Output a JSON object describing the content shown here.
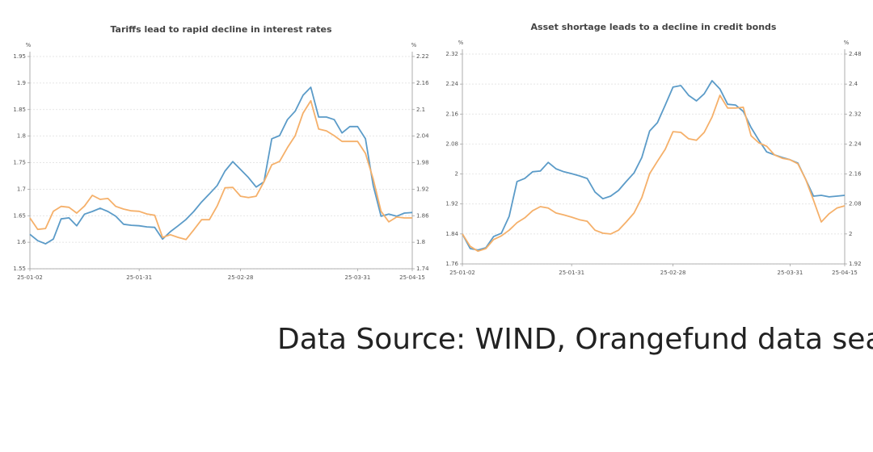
{
  "chart_data": [
    {
      "type": "line",
      "title": "Tariffs lead to rapid decline in interest rates",
      "ylabel": "%",
      "y2label": "%",
      "categories": [
        "25-01-02",
        null,
        null,
        null,
        null,
        null,
        null,
        null,
        null,
        null,
        null,
        null,
        null,
        null,
        "25-01-31",
        null,
        null,
        null,
        null,
        null,
        null,
        null,
        null,
        null,
        null,
        null,
        null,
        "25-02-28",
        null,
        null,
        null,
        null,
        null,
        null,
        null,
        null,
        null,
        null,
        null,
        null,
        null,
        null,
        "25-03-31",
        null,
        null,
        null,
        null,
        null,
        null,
        "25-04-15"
      ],
      "ylim": [
        1.55,
        1.95
      ],
      "yticks": [
        1.55,
        1.6,
        1.65,
        1.7,
        1.75,
        1.8,
        1.85,
        1.9,
        1.95
      ],
      "y2lim": [
        1.74,
        2.22
      ],
      "y2ticks": [
        1.74,
        1.8,
        1.86,
        1.92,
        1.98,
        2.04,
        2.1,
        2.16,
        2.22
      ],
      "grid": true,
      "series": [
        {
          "color": "#5b9bc8",
          "values": [
            1.615,
            1.603,
            1.597,
            1.606,
            1.644,
            1.646,
            1.631,
            1.653,
            1.658,
            1.664,
            1.658,
            1.649,
            1.634,
            1.632,
            1.631,
            1.629,
            1.628,
            1.606,
            1.62,
            1.631,
            1.643,
            1.658,
            1.676,
            1.691,
            1.707,
            1.734,
            1.752,
            1.737,
            1.722,
            1.704,
            1.714,
            1.795,
            1.801,
            1.831,
            1.847,
            1.877,
            1.892,
            1.836,
            1.836,
            1.831,
            1.806,
            1.818,
            1.818,
            1.795,
            1.707,
            1.649,
            1.653,
            1.649,
            1.655,
            1.656
          ]
        },
        {
          "color": "#f5b06a",
          "axis": "y2",
          "values": [
            1.855,
            1.829,
            1.831,
            1.87,
            1.881,
            1.879,
            1.866,
            1.882,
            1.906,
            1.897,
            1.899,
            1.881,
            1.875,
            1.871,
            1.87,
            1.864,
            1.861,
            1.811,
            1.817,
            1.811,
            1.806,
            1.828,
            1.851,
            1.851,
            1.882,
            1.923,
            1.924,
            1.904,
            1.901,
            1.904,
            1.937,
            1.975,
            1.983,
            2.014,
            2.041,
            2.092,
            2.12,
            2.056,
            2.052,
            2.041,
            2.028,
            2.028,
            2.028,
            2.001,
            1.943,
            1.87,
            1.846,
            1.857,
            1.855,
            1.855
          ]
        }
      ]
    },
    {
      "type": "line",
      "title": "Asset shortage leads to a decline in credit bonds",
      "ylabel": "%",
      "y2label": "%",
      "categories": [
        "25-01-02",
        null,
        null,
        null,
        null,
        null,
        null,
        null,
        null,
        null,
        null,
        null,
        null,
        null,
        "25-01-31",
        null,
        null,
        null,
        null,
        null,
        null,
        null,
        null,
        null,
        null,
        null,
        null,
        "25-02-28",
        null,
        null,
        null,
        null,
        null,
        null,
        null,
        null,
        null,
        null,
        null,
        null,
        null,
        null,
        "25-03-31",
        null,
        null,
        null,
        null,
        null,
        null,
        "25-04-15"
      ],
      "ylim": [
        1.76,
        2.32
      ],
      "yticks": [
        1.76,
        1.84,
        1.92,
        2,
        2.08,
        2.16,
        2.24,
        2.32
      ],
      "y2lim": [
        1.92,
        2.48
      ],
      "y2ticks": [
        1.92,
        2,
        2.08,
        2.16,
        2.24,
        2.32,
        2.4,
        2.48
      ],
      "grid": true,
      "series": [
        {
          "color": "#5b9bc8",
          "values": [
            1.84,
            1.801,
            1.797,
            1.803,
            1.833,
            1.842,
            1.887,
            1.98,
            1.988,
            2.006,
            2.008,
            2.031,
            2.014,
            2.006,
            2.001,
            1.995,
            1.988,
            1.952,
            1.934,
            1.941,
            1.956,
            1.98,
            2.003,
            2.044,
            2.115,
            2.137,
            2.184,
            2.232,
            2.236,
            2.21,
            2.195,
            2.214,
            2.249,
            2.227,
            2.186,
            2.184,
            2.167,
            2.124,
            2.09,
            2.059,
            2.051,
            2.044,
            2.038,
            2.029,
            1.986,
            1.941,
            1.943,
            1.939,
            1.941,
            1.943
          ]
        },
        {
          "color": "#f5b06a",
          "axis": "y2",
          "values": [
            2.0,
            1.967,
            1.954,
            1.961,
            1.985,
            1.995,
            2.01,
            2.03,
            2.043,
            2.062,
            2.073,
            2.069,
            2.056,
            2.051,
            2.045,
            2.038,
            2.034,
            2.01,
            2.002,
            2.0,
            2.01,
            2.032,
            2.056,
            2.097,
            2.161,
            2.194,
            2.226,
            2.273,
            2.271,
            2.254,
            2.25,
            2.271,
            2.312,
            2.37,
            2.336,
            2.336,
            2.338,
            2.262,
            2.243,
            2.234,
            2.211,
            2.202,
            2.198,
            2.187,
            2.146,
            2.09,
            2.032,
            2.054,
            2.069,
            2.075
          ]
        }
      ]
    }
  ],
  "source": "Data Source: WIND, Orangefund data sea"
}
